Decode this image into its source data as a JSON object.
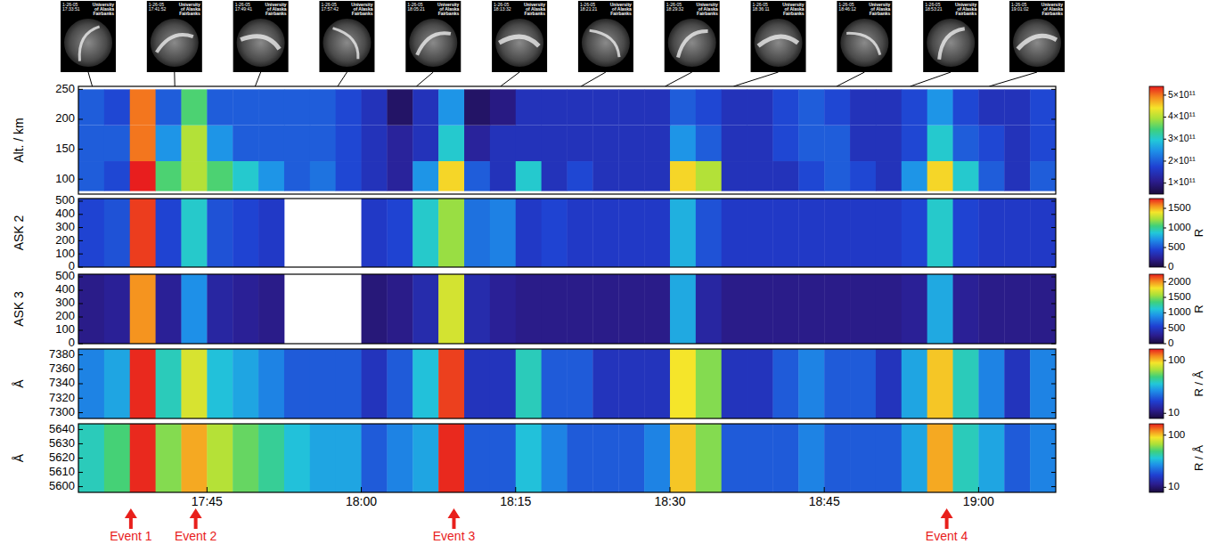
{
  "thumbnails": {
    "date": "1-26-05",
    "credit": "University of Alaska Fairbanks",
    "times": [
      "17:33:51",
      "17:41:52",
      "17:49:41",
      "17:57:42",
      "18:05:21",
      "18:13:32",
      "18:21:21",
      "18:29:32",
      "18:36:11",
      "18:46:12",
      "18:53:21",
      "19:01:02"
    ],
    "x": [
      1053.85,
      1061.87,
      1069.68,
      1077.7,
      1085.35,
      1093.53,
      1101.35,
      1109.53,
      1116.18,
      1126.2,
      1133.35,
      1141.03
    ]
  },
  "chart_data": [
    {
      "type": "heatmap",
      "ylabel": "Alt. / km",
      "xlim": [
        1052.5,
        1147.5
      ],
      "ylim": [
        75,
        255
      ],
      "yticks": [
        100,
        150,
        200,
        250
      ],
      "tick_labels": "y",
      "y_bins": [
        80,
        130,
        190,
        250
      ],
      "cells": [
        [
          200000000000.0,
          180000000000.0,
          550000000000.0,
          350000000000.0,
          400000000000.0,
          350000000000.0,
          300000000000.0,
          250000000000.0,
          200000000000.0,
          220000000000.0,
          180000000000.0,
          150000000000.0,
          120000000000.0,
          250000000000.0,
          450000000000.0,
          200000000000.0,
          150000000000.0,
          300000000000.0,
          150000000000.0,
          180000000000.0,
          150000000000.0,
          150000000000.0,
          150000000000.0,
          450000000000.0,
          400000000000.0,
          150000000000.0,
          150000000000.0,
          150000000000.0,
          180000000000.0,
          200000000000.0,
          180000000000.0,
          150000000000.0,
          250000000000.0,
          450000000000.0,
          300000000000.0,
          200000000000.0,
          150000000000.0,
          200000000000.0
        ],
        [
          200000000000.0,
          200000000000.0,
          500000000000.0,
          250000000000.0,
          400000000000.0,
          250000000000.0,
          200000000000.0,
          200000000000.0,
          200000000000.0,
          200000000000.0,
          180000000000.0,
          150000000000.0,
          120000000000.0,
          150000000000.0,
          300000000000.0,
          120000000000.0,
          150000000000.0,
          150000000000.0,
          150000000000.0,
          150000000000.0,
          150000000000.0,
          150000000000.0,
          150000000000.0,
          250000000000.0,
          200000000000.0,
          150000000000.0,
          150000000000.0,
          180000000000.0,
          200000000000.0,
          200000000000.0,
          150000000000.0,
          150000000000.0,
          180000000000.0,
          300000000000.0,
          200000000000.0,
          180000000000.0,
          150000000000.0,
          180000000000.0
        ],
        [
          200000000000.0,
          180000000000.0,
          500000000000.0,
          200000000000.0,
          350000000000.0,
          200000000000.0,
          200000000000.0,
          200000000000.0,
          200000000000.0,
          200000000000.0,
          180000000000.0,
          150000000000.0,
          80000000000.0,
          150000000000.0,
          250000000000.0,
          80000000000.0,
          100000000000.0,
          150000000000.0,
          150000000000.0,
          150000000000.0,
          150000000000.0,
          150000000000.0,
          150000000000.0,
          200000000000.0,
          180000000000.0,
          150000000000.0,
          150000000000.0,
          180000000000.0,
          200000000000.0,
          180000000000.0,
          150000000000.0,
          150000000000.0,
          180000000000.0,
          250000000000.0,
          180000000000.0,
          150000000000.0,
          150000000000.0,
          180000000000.0
        ]
      ],
      "colorbar": {
        "lim": [
          50000000000.0,
          540000000000.0
        ],
        "ticks": [
          {
            "value": 100000000000.0,
            "label": "1×10¹¹"
          },
          {
            "value": 200000000000.0,
            "label": "2×10¹¹"
          },
          {
            "value": 300000000000.0,
            "label": "3×10¹¹"
          },
          {
            "value": 400000000000.0,
            "label": "4×10¹¹"
          },
          {
            "value": 500000000000.0,
            "label": "5×10¹¹"
          }
        ]
      }
    },
    {
      "type": "heatmap",
      "ylabel": "ASK 2",
      "xlim": [
        1052.5,
        1147.5
      ],
      "ylim": [
        0,
        520
      ],
      "yticks": [
        0,
        100,
        200,
        300,
        400,
        500
      ],
      "tick_labels": "y",
      "y_bins": [
        0,
        520
      ],
      "cells": [
        [
          450,
          500,
          1700,
          450,
          900,
          500,
          450,
          400,
          null,
          null,
          null,
          400,
          450,
          900,
          1200,
          600,
          650,
          400,
          450,
          400,
          400,
          400,
          400,
          800,
          500,
          400,
          400,
          400,
          400,
          400,
          400,
          400,
          450,
          900,
          450,
          400,
          400,
          400
        ]
      ],
      "colorbar": {
        "lim": [
          0,
          1750
        ],
        "ticks": [
          0,
          500,
          1000,
          1500
        ],
        "label": "R"
      }
    },
    {
      "type": "heatmap",
      "ylabel": "ASK 3",
      "xlim": [
        1052.5,
        1147.5
      ],
      "ylim": [
        0,
        520
      ],
      "yticks": [
        0,
        100,
        200,
        300,
        400,
        500
      ],
      "tick_labels": "y",
      "y_bins": [
        0,
        520
      ],
      "cells": [
        [
          250,
          300,
          2000,
          300,
          900,
          350,
          300,
          250,
          null,
          null,
          null,
          200,
          250,
          400,
          1700,
          400,
          300,
          250,
          250,
          250,
          250,
          250,
          250,
          1000,
          350,
          250,
          250,
          250,
          250,
          250,
          250,
          250,
          300,
          1000,
          300,
          250,
          250,
          250
        ]
      ],
      "colorbar": {
        "lim": [
          0,
          2250
        ],
        "ticks": [
          0,
          500,
          1000,
          1500,
          2000
        ],
        "label": "R"
      }
    },
    {
      "type": "heatmap",
      "ylabel": "Å",
      "xlim": [
        1052.5,
        1147.5
      ],
      "ylim": [
        7292,
        7388
      ],
      "yticks": [
        7300,
        7320,
        7340,
        7360,
        7380
      ],
      "tick_labels": "y",
      "y_bins": [
        7292,
        7388
      ],
      "cells": [
        [
          25,
          30,
          160,
          40,
          80,
          35,
          30,
          25,
          20,
          20,
          20,
          15,
          20,
          35,
          150,
          15,
          15,
          40,
          20,
          20,
          15,
          15,
          15,
          90,
          60,
          15,
          15,
          20,
          25,
          20,
          20,
          15,
          30,
          100,
          40,
          25,
          15,
          25
        ]
      ],
      "colorbar": {
        "lim": [
          8,
          165
        ],
        "ticks": [
          10,
          100
        ],
        "label": "R / Å",
        "log": true
      }
    },
    {
      "type": "heatmap",
      "ylabel": "Å",
      "xlim": [
        1052.5,
        1147.5
      ],
      "ylim": [
        5596,
        5644
      ],
      "yticks": [
        5600,
        5610,
        5620,
        5630,
        5640
      ],
      "xticks": [
        {
          "value": 1065,
          "label": "17:45"
        },
        {
          "value": 1080,
          "label": "18:00"
        },
        {
          "value": 1095,
          "label": "18:15"
        },
        {
          "value": 1110,
          "label": "18:30"
        },
        {
          "value": 1125,
          "label": "18:45"
        },
        {
          "value": 1140,
          "label": "19:00"
        }
      ],
      "y_bins": [
        5596,
        5644
      ],
      "cells": [
        [
          40,
          50,
          160,
          60,
          110,
          70,
          55,
          45,
          35,
          30,
          30,
          20,
          25,
          30,
          160,
          20,
          20,
          35,
          25,
          20,
          20,
          20,
          25,
          100,
          60,
          20,
          20,
          20,
          25,
          20,
          20,
          20,
          30,
          110,
          40,
          30,
          20,
          25
        ]
      ],
      "colorbar": {
        "lim": [
          8,
          165
        ],
        "ticks": [
          10,
          100
        ],
        "label": "R / Å",
        "log": true
      },
      "annotations": [
        {
          "text": "Event 1",
          "x": 1057.6
        },
        {
          "text": "Event 2",
          "x": 1063.9
        },
        {
          "text": "Event 3",
          "x": 1089
        },
        {
          "text": "Event 4",
          "x": 1136.9
        }
      ]
    }
  ]
}
